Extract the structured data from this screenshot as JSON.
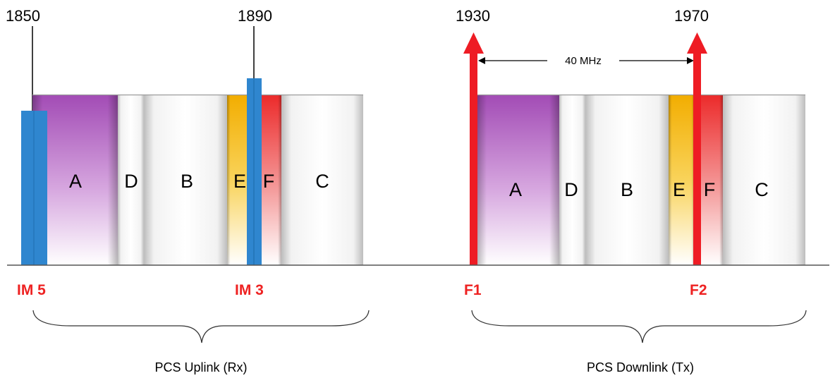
{
  "colors": {
    "signal_red": "#ee1c24",
    "intermod_blue": "#2f86cf",
    "band_a_purple": "#9c3fb0",
    "band_e_yellow": "#f5b800",
    "band_f_red": "#ec2f2f",
    "band_gray": "#e4e4e4"
  },
  "uplink": {
    "freq_left": "1850",
    "freq_right": "1890",
    "bands": [
      "A",
      "D",
      "B",
      "E",
      "F",
      "C"
    ],
    "im5_label": "IM 5",
    "im3_label": "IM 3",
    "caption": "PCS Uplink (Rx)"
  },
  "downlink": {
    "freq_left": "1930",
    "freq_right": "1970",
    "bands": [
      "A",
      "D",
      "B",
      "E",
      "F",
      "C"
    ],
    "spacing_label": "40 MHz",
    "f1_label": "F1",
    "f2_label": "F2",
    "caption": "PCS Downlink (Tx)"
  }
}
